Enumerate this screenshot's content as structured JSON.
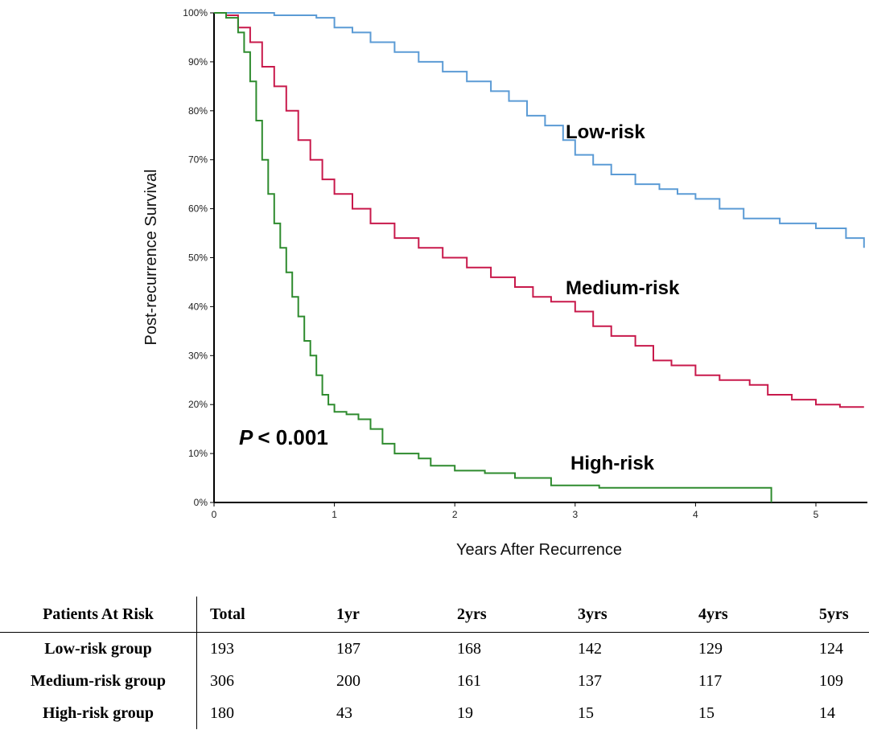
{
  "chart_data": {
    "type": "line",
    "title": "",
    "xlabel": "Years After Recurrence",
    "ylabel": "Post-recurrence Survival",
    "xlim": [
      0,
      5.4
    ],
    "ylim": [
      0,
      100
    ],
    "x_ticks": [
      "0",
      "1",
      "2",
      "3",
      "4",
      "5"
    ],
    "y_ticks": [
      "0%",
      "10%",
      "20%",
      "30%",
      "40%",
      "50%",
      "60%",
      "70%",
      "80%",
      "90%",
      "100%"
    ],
    "annotation": {
      "p_symbol": "P",
      "p_rest": "< 0.001"
    },
    "series": [
      {
        "name": "Low-risk",
        "color": "#5b9bd5",
        "points": [
          [
            0,
            100
          ],
          [
            0.3,
            100
          ],
          [
            0.5,
            99.5
          ],
          [
            0.85,
            99
          ],
          [
            1.0,
            97
          ],
          [
            1.15,
            96
          ],
          [
            1.3,
            94
          ],
          [
            1.5,
            92
          ],
          [
            1.7,
            90
          ],
          [
            1.9,
            88
          ],
          [
            2.1,
            86
          ],
          [
            2.3,
            84
          ],
          [
            2.45,
            82
          ],
          [
            2.6,
            79
          ],
          [
            2.75,
            77
          ],
          [
            2.9,
            74
          ],
          [
            3.0,
            71
          ],
          [
            3.15,
            69
          ],
          [
            3.3,
            67
          ],
          [
            3.5,
            65
          ],
          [
            3.7,
            64
          ],
          [
            3.85,
            63
          ],
          [
            4.0,
            62
          ],
          [
            4.2,
            60
          ],
          [
            4.4,
            58
          ],
          [
            4.7,
            57
          ],
          [
            5.0,
            56
          ],
          [
            5.25,
            54
          ],
          [
            5.4,
            52
          ]
        ]
      },
      {
        "name": "Medium-risk",
        "color": "#c8194b",
        "points": [
          [
            0,
            100
          ],
          [
            0.1,
            99.5
          ],
          [
            0.2,
            97
          ],
          [
            0.3,
            94
          ],
          [
            0.4,
            89
          ],
          [
            0.5,
            85
          ],
          [
            0.6,
            80
          ],
          [
            0.7,
            74
          ],
          [
            0.8,
            70
          ],
          [
            0.9,
            66
          ],
          [
            1.0,
            63
          ],
          [
            1.15,
            60
          ],
          [
            1.3,
            57
          ],
          [
            1.5,
            54
          ],
          [
            1.7,
            52
          ],
          [
            1.9,
            50
          ],
          [
            2.1,
            48
          ],
          [
            2.3,
            46
          ],
          [
            2.5,
            44
          ],
          [
            2.65,
            42
          ],
          [
            2.8,
            41
          ],
          [
            3.0,
            39
          ],
          [
            3.15,
            36
          ],
          [
            3.3,
            34
          ],
          [
            3.5,
            32
          ],
          [
            3.65,
            29
          ],
          [
            3.8,
            28
          ],
          [
            4.0,
            26
          ],
          [
            4.2,
            25
          ],
          [
            4.45,
            24
          ],
          [
            4.6,
            22
          ],
          [
            4.8,
            21
          ],
          [
            5.0,
            20
          ],
          [
            5.2,
            19.5
          ],
          [
            5.4,
            19.5
          ]
        ]
      },
      {
        "name": "High-risk",
        "color": "#2e8b2e",
        "points": [
          [
            0,
            100
          ],
          [
            0.1,
            99
          ],
          [
            0.2,
            96
          ],
          [
            0.25,
            92
          ],
          [
            0.3,
            86
          ],
          [
            0.35,
            78
          ],
          [
            0.4,
            70
          ],
          [
            0.45,
            63
          ],
          [
            0.5,
            57
          ],
          [
            0.55,
            52
          ],
          [
            0.6,
            47
          ],
          [
            0.65,
            42
          ],
          [
            0.7,
            38
          ],
          [
            0.75,
            33
          ],
          [
            0.8,
            30
          ],
          [
            0.85,
            26
          ],
          [
            0.9,
            22
          ],
          [
            0.95,
            20
          ],
          [
            1.0,
            18.5
          ],
          [
            1.1,
            18
          ],
          [
            1.2,
            17
          ],
          [
            1.3,
            15
          ],
          [
            1.4,
            12
          ],
          [
            1.5,
            10
          ],
          [
            1.7,
            9
          ],
          [
            1.8,
            7.5
          ],
          [
            2.0,
            6.5
          ],
          [
            2.25,
            6
          ],
          [
            2.5,
            5
          ],
          [
            2.8,
            3.5
          ],
          [
            3.2,
            3
          ],
          [
            4.63,
            3
          ],
          [
            4.63,
            0
          ]
        ]
      }
    ]
  },
  "risk_table": {
    "headers": [
      "Patients At Risk",
      "Total",
      "1yr",
      "2yrs",
      "3yrs",
      "4yrs",
      "5yrs"
    ],
    "rows": [
      [
        "Low-risk group",
        "193",
        "187",
        "168",
        "142",
        "129",
        "124"
      ],
      [
        "Medium-risk group",
        "306",
        "200",
        "161",
        "137",
        "117",
        "109"
      ],
      [
        "High-risk group",
        "180",
        "43",
        "19",
        "15",
        "15",
        "14"
      ]
    ]
  }
}
